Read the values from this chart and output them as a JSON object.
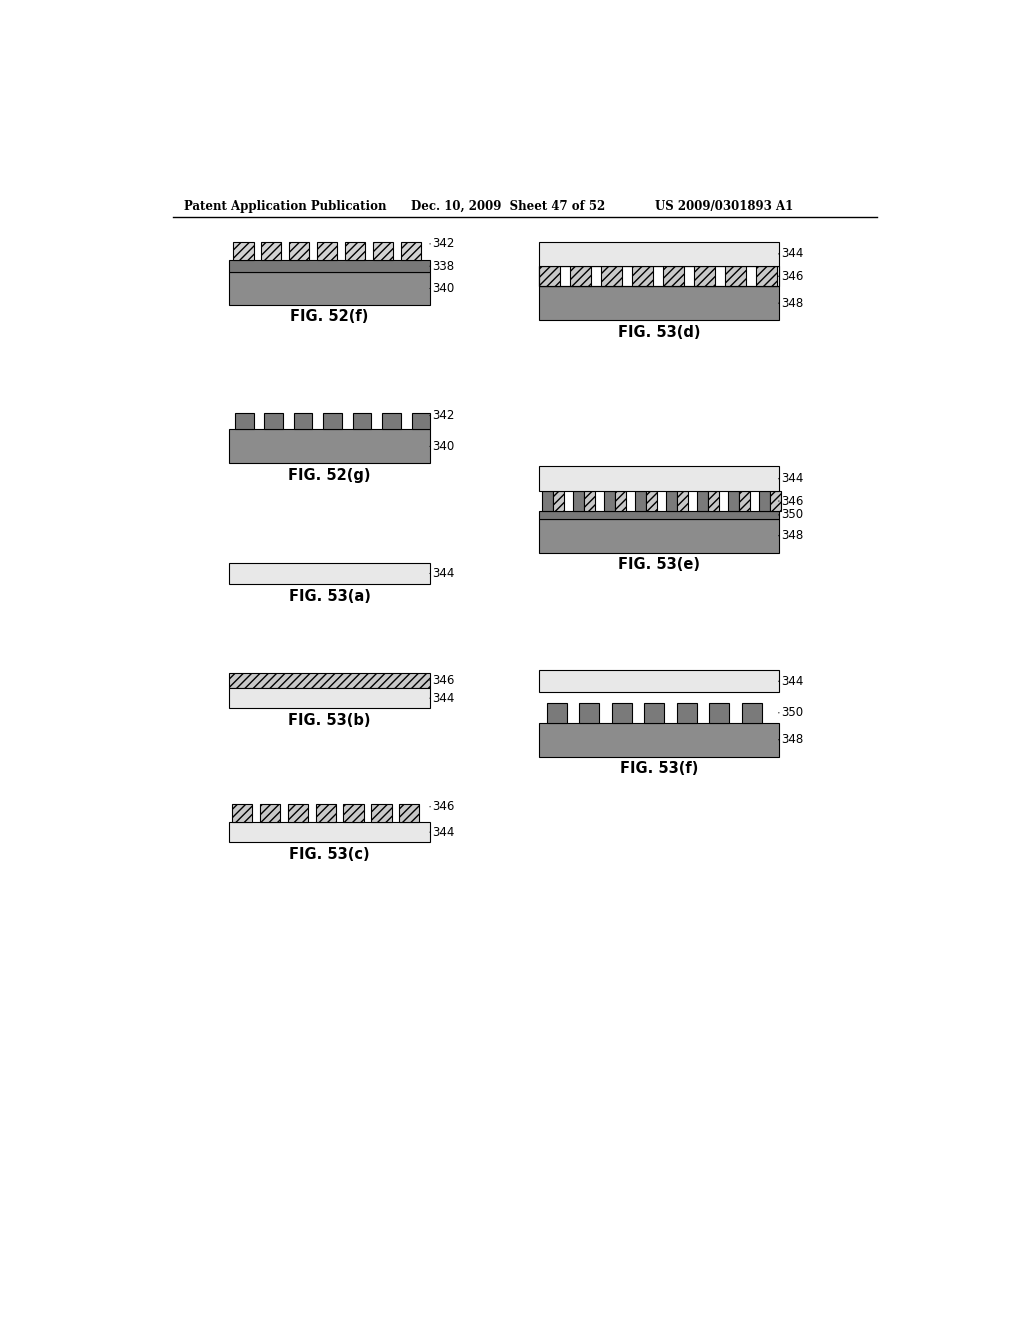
{
  "header_left": "Patent Application Publication",
  "header_mid": "Dec. 10, 2009  Sheet 47 of 52",
  "header_right": "US 2009/0301893 A1",
  "bg_color": "#ffffff",
  "c_substrate": "#8c8c8c",
  "c_layer338": "#787878",
  "c_tooth342": "#d2d2d2",
  "c_layer344": "#e8e8e8",
  "c_layer346": "#c8c8c8",
  "c_layer350": "#6e6e6e",
  "c_dark_tooth": "#7a7a7a",
  "edge": "#000000",
  "label_fontsize": 8.5,
  "title_fontsize": 10.5
}
